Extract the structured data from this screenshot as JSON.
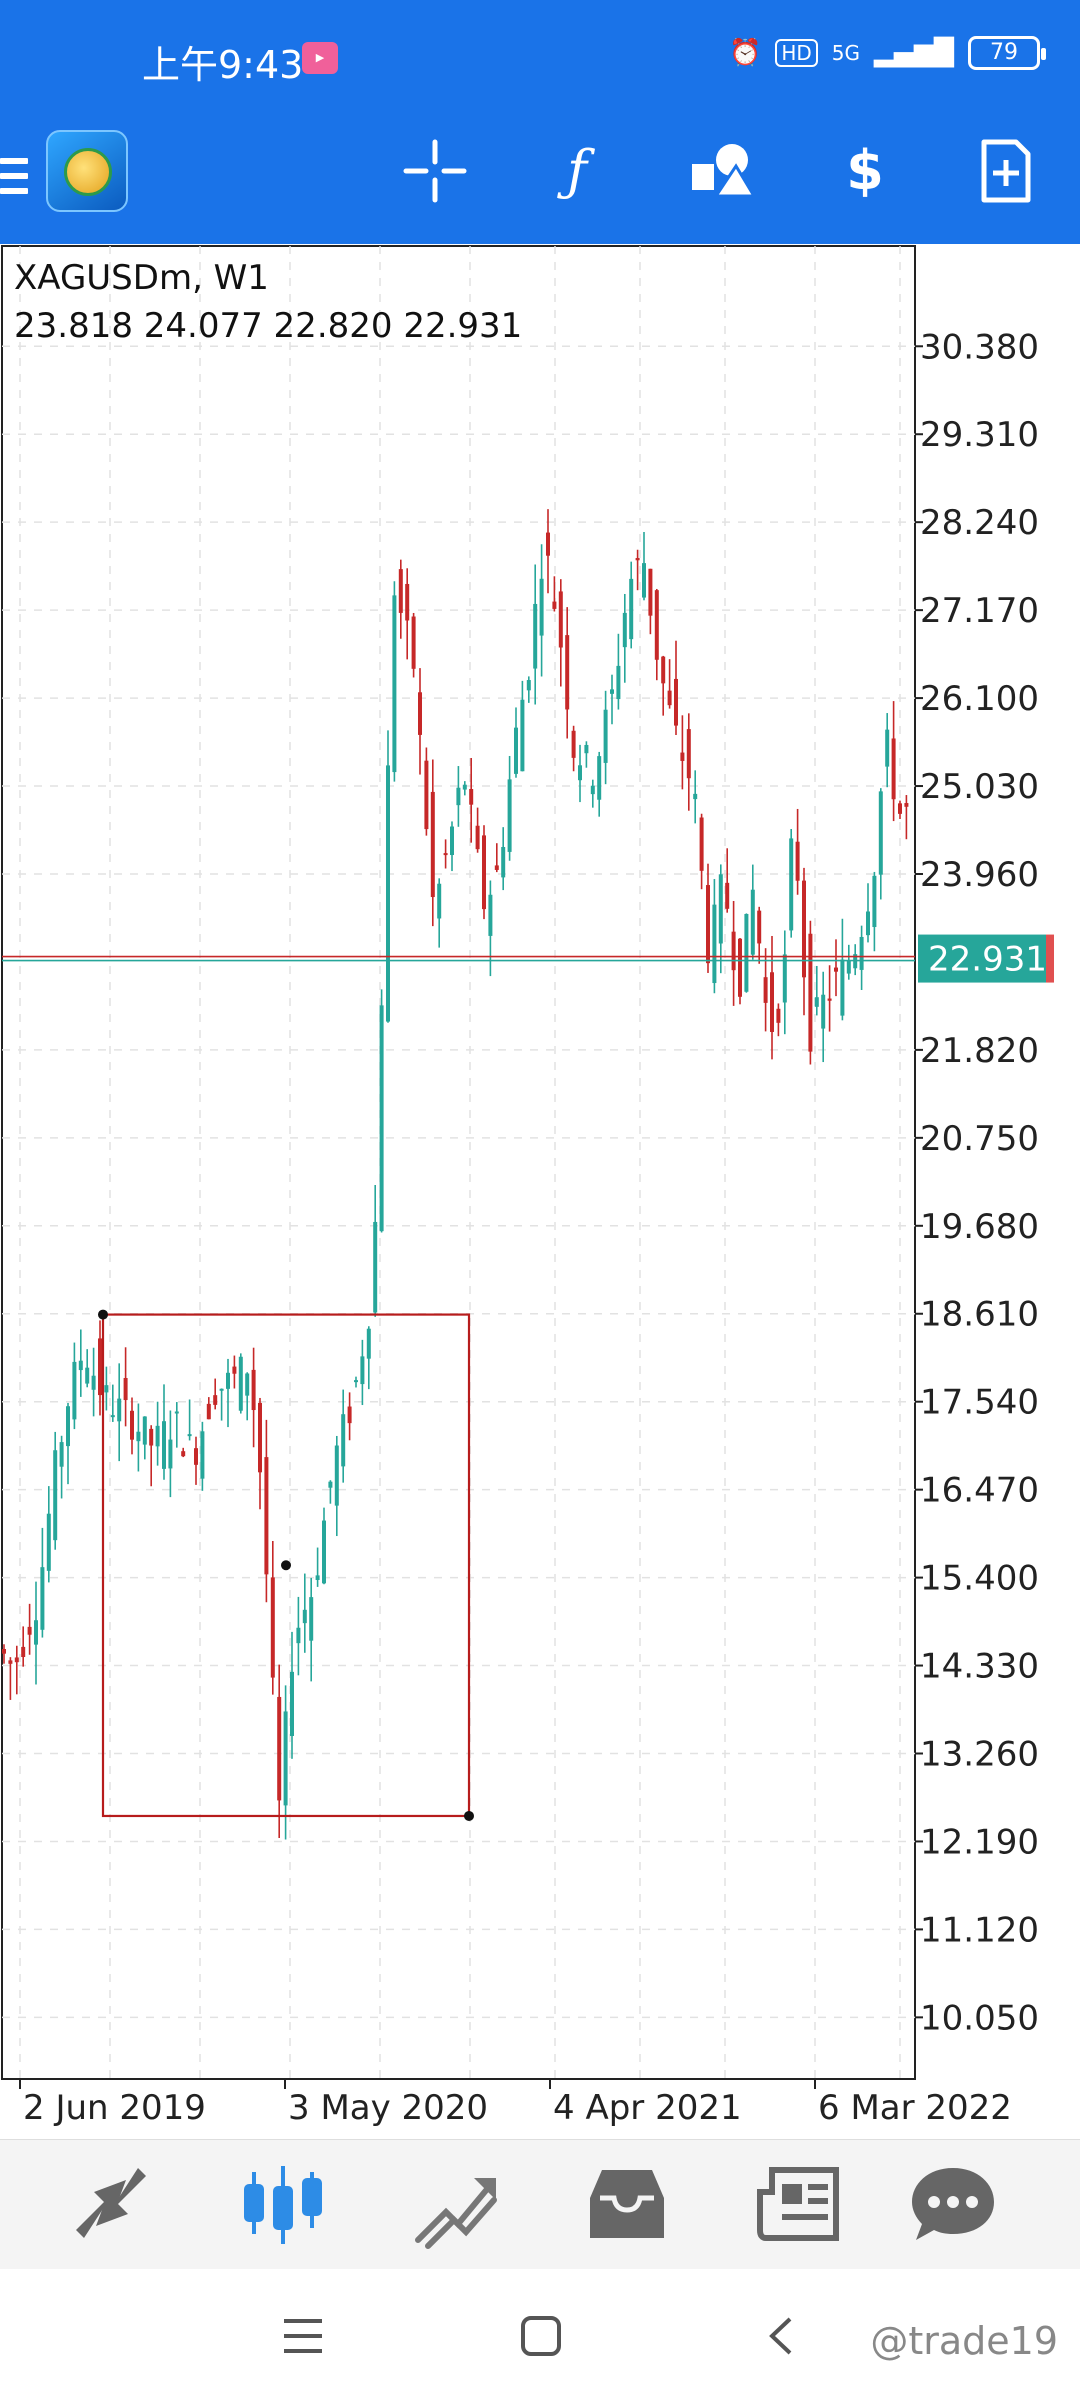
{
  "status_bar": {
    "time": "上午9:43",
    "app_badge_icon": "bilibili-icon",
    "network_label": "5G",
    "hd_label": "HD",
    "battery_level": "79"
  },
  "toolbar": {
    "icons": [
      "menu-icon",
      "metatrader-logo",
      "crosshair-icon",
      "function-icon",
      "objects-icon",
      "trade-dollar-icon",
      "new-chart-icon"
    ],
    "accent_color": "#1a73e8"
  },
  "chart": {
    "symbol": "XAGUSDm, W1",
    "ohlc": "23.818 24.077 22.820 22.931",
    "current_price": "22.931",
    "price_badge_color": "#26a69a",
    "bull_color": "#26a69a",
    "bear_color": "#c62828"
  },
  "chart_data": {
    "type": "candlestick",
    "y_ticks": [
      "30.380",
      "29.310",
      "28.240",
      "27.170",
      "26.100",
      "25.030",
      "23.960",
      "22.931",
      "21.820",
      "20.750",
      "19.680",
      "18.610",
      "17.540",
      "16.470",
      "15.400",
      "14.330",
      "13.260",
      "12.190",
      "11.120",
      "10.050"
    ],
    "x_ticks": [
      "2 Jun 2019",
      "3 May 2020",
      "4 Apr 2021",
      "6 Mar 2022"
    ],
    "ylim": [
      9.3,
      31.6
    ],
    "grid": true,
    "last_close": 22.931,
    "rectangle": {
      "price_top": 18.6,
      "price_bottom": 12.5
    }
  },
  "bottom_nav": {
    "icons": [
      "quotes-icon",
      "chart-icon",
      "trade-icon",
      "history-icon",
      "news-icon",
      "messages-icon"
    ],
    "active": "chart-icon"
  },
  "system_nav": {
    "icons": [
      "recents-icon",
      "home-icon",
      "back-icon"
    ],
    "watermark": "@trade19"
  }
}
